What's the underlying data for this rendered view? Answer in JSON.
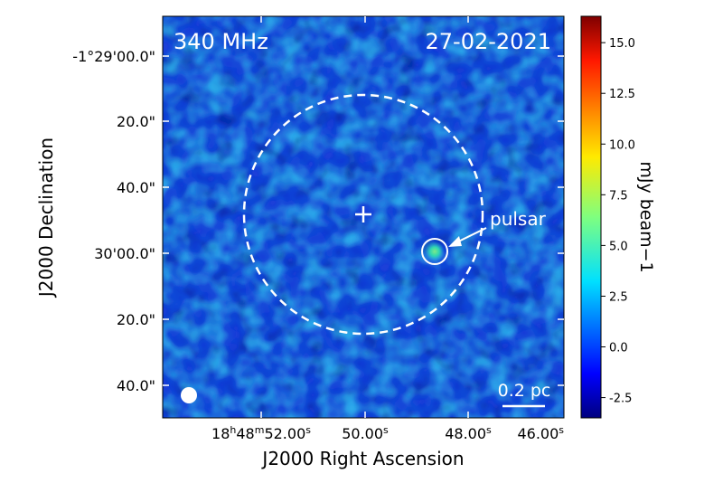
{
  "image": {
    "frequency_label": "340 MHz",
    "date_label": "27-02-2021",
    "source_label": "pulsar",
    "scale_bar_label": "0.2 pc",
    "x_axis_title": "J2000 Right Ascension",
    "y_axis_title": "J2000 Declination",
    "colorbar_title": "mJy beam−1",
    "x_ticks": [
      {
        "h": "18",
        "m": "48",
        "s": "52.00",
        "full": "18h48m52.00s"
      },
      {
        "s": "50.00"
      },
      {
        "s": "48.00"
      },
      {
        "s": "46.00"
      }
    ],
    "y_ticks": [
      "-1°29'00.0\"",
      "20.0\"",
      "40.0\"",
      "30'00.0\"",
      "20.0\"",
      "40.0\""
    ],
    "colorbar_ticks": [
      "15.0",
      "12.5",
      "10.0",
      "7.5",
      "5.0",
      "2.5",
      "0.0",
      "-2.5"
    ],
    "colorbar_range": [
      -3.5,
      16.3
    ],
    "colormap": "jet",
    "colors": {
      "annotation": "#ffffff",
      "background_low": "#1a3fd8",
      "background_high": "#2fb8ea",
      "source_peak": "#39e09a"
    }
  }
}
